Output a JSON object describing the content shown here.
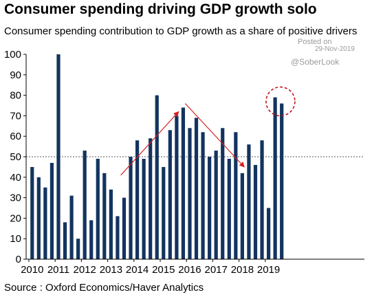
{
  "header": {
    "title": "Consumer spending driving GDP growth solo",
    "subtitle": "Consumer spending contribution to GDP growth as a share of positive drivers"
  },
  "watermark": {
    "posted": "Posted on",
    "date": "29-Nov-2019",
    "handle": "@SoberLook"
  },
  "footer": {
    "source": "Source : Oxford Economics/Haver Analytics"
  },
  "colors": {
    "bar": "#13345f",
    "reference": "#555555",
    "arrow": "#d62020",
    "highlight": "#c8101a"
  },
  "chart_data": {
    "type": "bar",
    "title": "Consumer spending driving GDP growth solo",
    "subtitle": "Consumer spending contribution to GDP growth as a share of positive drivers",
    "xlabel": "",
    "ylabel": "",
    "ylim": [
      0,
      100
    ],
    "yticks": [
      0,
      10,
      20,
      30,
      40,
      50,
      60,
      70,
      80,
      90,
      100
    ],
    "xticks": [
      "2010",
      "2011",
      "2012",
      "2013",
      "2014",
      "2015",
      "2016",
      "2017",
      "2018",
      "2019"
    ],
    "grid": false,
    "reference_line": {
      "y": 50,
      "style": "dotted"
    },
    "categories": [
      "2010 Q1",
      "2010 Q2",
      "2010 Q3",
      "2010 Q4",
      "2011 Q1",
      "2011 Q2",
      "2011 Q3",
      "2011 Q4",
      "2012 Q1",
      "2012 Q2",
      "2012 Q3",
      "2012 Q4",
      "2013 Q1",
      "2013 Q2",
      "2013 Q3",
      "2013 Q4",
      "2014 Q1",
      "2014 Q2",
      "2014 Q3",
      "2014 Q4",
      "2015 Q1",
      "2015 Q2",
      "2015 Q3",
      "2015 Q4",
      "2016 Q1",
      "2016 Q2",
      "2016 Q3",
      "2016 Q4",
      "2017 Q1",
      "2017 Q2",
      "2017 Q3",
      "2017 Q4",
      "2018 Q1",
      "2018 Q2",
      "2018 Q3",
      "2018 Q4",
      "2019 Q1",
      "2019 Q2",
      "2019 Q3"
    ],
    "values": [
      45,
      40,
      35,
      47,
      100,
      18,
      31,
      10,
      53,
      19,
      49,
      42,
      34,
      21,
      30,
      50,
      58,
      49,
      59,
      80,
      45,
      63,
      70,
      74,
      64,
      69,
      62,
      50,
      53,
      64,
      49,
      62,
      42,
      56,
      46,
      58,
      25,
      79,
      76
    ],
    "annotations": [
      {
        "type": "arrow",
        "from": {
          "index": 13.5,
          "y": 41
        },
        "to": {
          "index": 22.3,
          "y": 72
        }
      },
      {
        "type": "arrow",
        "from": {
          "index": 23.3,
          "y": 76
        },
        "to": {
          "index": 32.3,
          "y": 45
        }
      },
      {
        "type": "circle",
        "index_from": 37,
        "index_to": 38,
        "y": 77
      }
    ]
  }
}
